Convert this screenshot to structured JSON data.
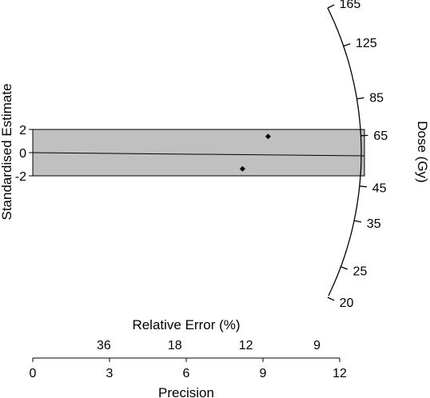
{
  "chart_data": {
    "type": "scatter",
    "subtype": "radial-plot",
    "title": "",
    "y_axis": {
      "label": "Standardised Estimate",
      "ticks": [
        2,
        0,
        -2
      ],
      "tick_labels": [
        "2",
        "0",
        "-2"
      ],
      "band": [
        -2,
        2
      ]
    },
    "precision_axis": {
      "label": "Precision",
      "range": [
        0,
        12
      ],
      "ticks": [
        0,
        3,
        6,
        9,
        12
      ],
      "tick_labels": [
        "0",
        "3",
        "6",
        "9",
        "12"
      ]
    },
    "relative_error_axis": {
      "label": "Relative Error (%)",
      "ticks": [
        36,
        18,
        12,
        9
      ],
      "tick_labels": [
        "36",
        "18",
        "12",
        "9"
      ]
    },
    "dose_axis": {
      "label": "Dose (Gy)",
      "range": [
        20,
        165
      ],
      "ticks": [
        165,
        125,
        85,
        65,
        45,
        35,
        25,
        20
      ],
      "tick_labels": [
        "165",
        "125",
        "85",
        "65",
        "45",
        "35",
        "25",
        "20"
      ]
    },
    "points": [
      {
        "precision": 8.2,
        "z": -1.4
      },
      {
        "precision": 9.2,
        "z": 1.4
      }
    ],
    "central_value": 57,
    "band_color": "#c0c0c0"
  }
}
